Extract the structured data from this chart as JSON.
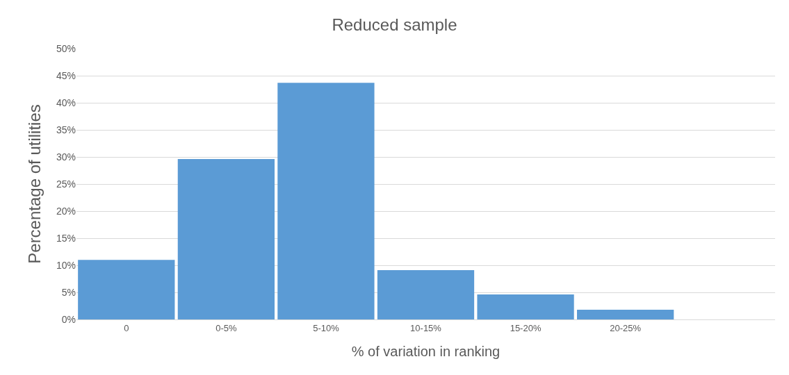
{
  "chart_data": {
    "type": "bar",
    "title": "Reduced sample",
    "xlabel": "% of variation in ranking",
    "ylabel": "Percentage of utilities",
    "categories": [
      "0",
      "0-5%",
      "5-10%",
      "10-15%",
      "15-20%",
      "20-25%",
      null
    ],
    "values": [
      11,
      29.6,
      43.7,
      9.1,
      4.6,
      1.8,
      null
    ],
    "color": "#5b9bd5",
    "ylim": [
      0,
      50
    ],
    "yticks": [
      {
        "value": 0,
        "label": "0%"
      },
      {
        "value": 5,
        "label": "5%"
      },
      {
        "value": 10,
        "label": "10%"
      },
      {
        "value": 15,
        "label": "15%"
      },
      {
        "value": 20,
        "label": "20%"
      },
      {
        "value": 25,
        "label": "25%"
      },
      {
        "value": 30,
        "label": "30%"
      },
      {
        "value": 35,
        "label": "35%"
      },
      {
        "value": 40,
        "label": "40%"
      },
      {
        "value": 45,
        "label": "45%"
      },
      {
        "value": 50,
        "label": "50%"
      }
    ],
    "grid": "y",
    "legend": false
  }
}
